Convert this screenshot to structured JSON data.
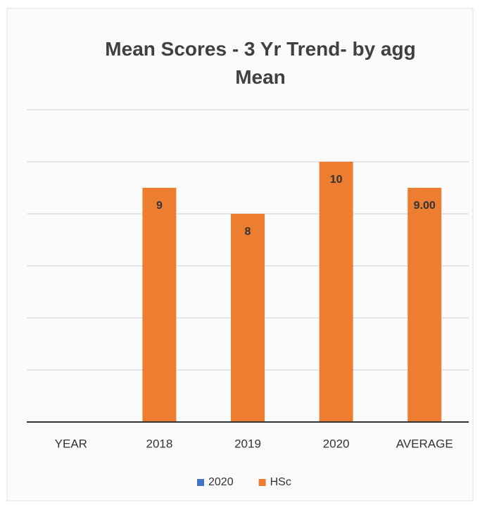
{
  "chart_data": {
    "type": "bar",
    "title": "Mean Scores - 3 Yr Trend- by agg Mean",
    "categories": [
      "YEAR",
      "2018",
      "2019",
      "2020",
      "AVERAGE"
    ],
    "series": [
      {
        "name": "2020",
        "color": "#4472c4",
        "values": [
          null,
          null,
          null,
          null,
          null
        ]
      },
      {
        "name": "HSc",
        "color": "#ed7d31",
        "values": [
          null,
          9,
          8,
          10,
          9
        ],
        "value_labels": [
          null,
          "9",
          "8",
          "10",
          "9.00"
        ]
      }
    ],
    "ylim": [
      0,
      12
    ],
    "yticks": [
      0,
      2,
      4,
      6,
      8,
      10,
      12
    ],
    "grid": true,
    "legend": "bottom"
  }
}
